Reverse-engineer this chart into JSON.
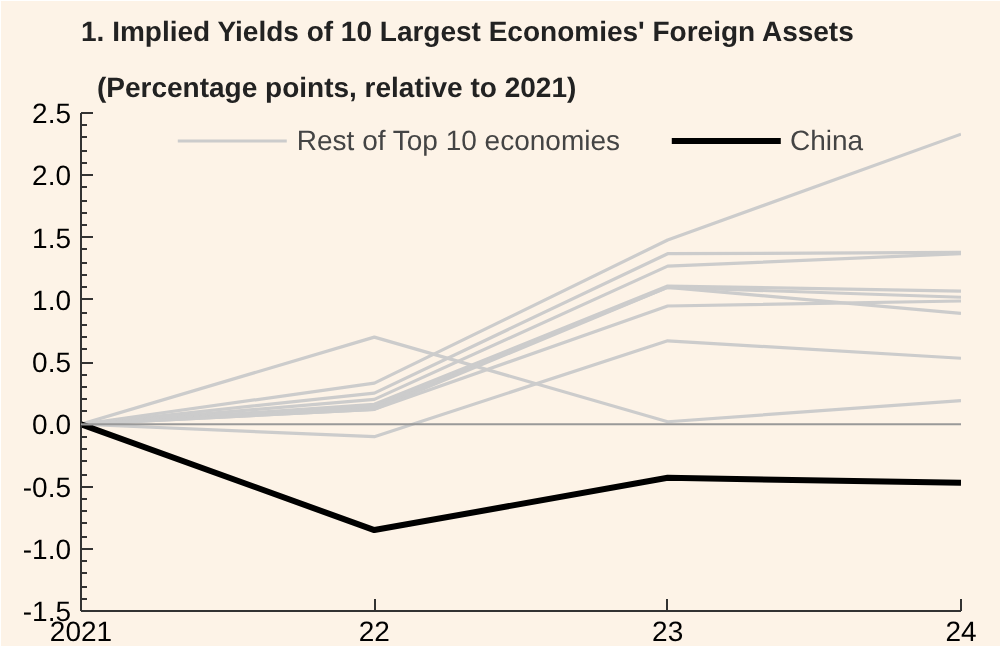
{
  "chart_data": {
    "type": "line",
    "title": "1. Implied Yields of 10 Largest Economies' Foreign Assets",
    "subtitle": "(Percentage points, relative to 2021)",
    "x": [
      2021,
      2022,
      2023,
      2024
    ],
    "xlim": [
      2021,
      2024
    ],
    "xticks": [
      {
        "value": 2021,
        "label": "2021"
      },
      {
        "value": 2022,
        "label": "22"
      },
      {
        "value": 2023,
        "label": "23"
      },
      {
        "value": 2024,
        "label": "24"
      }
    ],
    "ylim": [
      -1.5,
      2.5
    ],
    "yticks": [
      {
        "value": -1.5,
        "label": "-1.5"
      },
      {
        "value": -1,
        "label": "-1.0"
      },
      {
        "value": -0.5,
        "label": "-0.5"
      },
      {
        "value": 0,
        "label": "0.0"
      },
      {
        "value": 0.5,
        "label": "0.5"
      },
      {
        "value": 1,
        "label": "1.0"
      },
      {
        "value": 1.5,
        "label": "1.5"
      },
      {
        "value": 2,
        "label": "2.0"
      },
      {
        "value": 2.5,
        "label": "2.5"
      }
    ],
    "grid": false,
    "legend": "top",
    "marker": "none",
    "line_style": "solid",
    "ref_lines": [
      {
        "axis": "y",
        "value": 0,
        "color": "#999999"
      }
    ],
    "series": [
      {
        "name": "Rest of Top 10 economies",
        "color": "#cccccc",
        "values": [
          0,
          0.7,
          0.02,
          0.19
        ]
      },
      {
        "color": "#cccccc",
        "values": [
          0,
          -0.1,
          0.67,
          0.53
        ]
      },
      {
        "color": "#cccccc",
        "values": [
          0,
          0.33,
          1.48,
          2.33
        ]
      },
      {
        "color": "#cccccc",
        "values": [
          0,
          0.25,
          1.37,
          1.38
        ]
      },
      {
        "color": "#cccccc",
        "values": [
          0,
          0.2,
          1.27,
          1.37
        ]
      },
      {
        "color": "#cccccc",
        "values": [
          0,
          0.16,
          1.11,
          1.07
        ]
      },
      {
        "color": "#cccccc",
        "values": [
          0,
          0.14,
          1.1,
          0.89
        ]
      },
      {
        "color": "#cccccc",
        "values": [
          0,
          0.12,
          1.1,
          1.02
        ]
      },
      {
        "color": "#cccccc",
        "values": [
          0,
          0.12,
          0.95,
          0.99
        ]
      },
      {
        "name": "China",
        "color": "#000000",
        "values": [
          0,
          -0.85,
          -0.43,
          -0.47
        ]
      }
    ]
  }
}
